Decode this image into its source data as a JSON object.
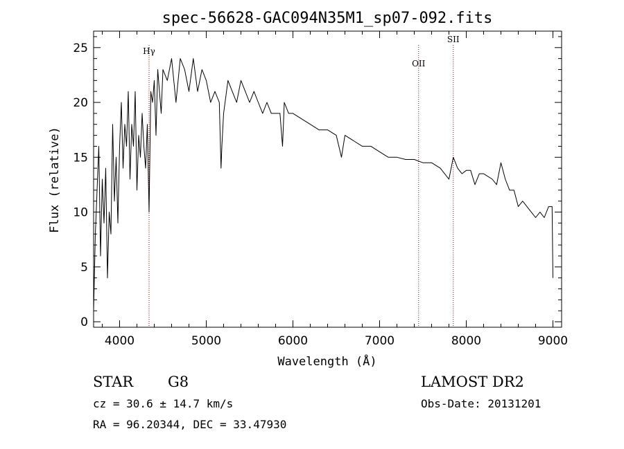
{
  "chart_data": {
    "type": "line",
    "title": "spec-56628-GAC094N35M1_sp07-092.fits",
    "xlabel": "Wavelength (Å)",
    "ylabel": "Flux (relative)",
    "xlim": [
      3700,
      9100
    ],
    "ylim": [
      -0.5,
      26.5
    ],
    "xticks": [
      4000,
      5000,
      6000,
      7000,
      8000,
      9000
    ],
    "yticks": [
      0,
      5,
      10,
      15,
      20,
      25
    ],
    "grid": false,
    "legend": "none",
    "line_color": "#000000",
    "marker_color": "#8b0000",
    "series": [
      {
        "x": [
          3700,
          3720,
          3740,
          3760,
          3780,
          3800,
          3820,
          3840,
          3860,
          3880,
          3900,
          3920,
          3940,
          3960,
          3980,
          4000,
          4020,
          4040,
          4060,
          4080,
          4100,
          4120,
          4140,
          4160,
          4180,
          4200,
          4220,
          4240,
          4260,
          4280,
          4300,
          4320,
          4340,
          4360,
          4380,
          4400,
          4420,
          4440,
          4460,
          4480,
          4500,
          4550,
          4600,
          4650,
          4700,
          4750,
          4800,
          4850,
          4900,
          4950,
          5000,
          5050,
          5100,
          5150,
          5170,
          5180,
          5200,
          5250,
          5300,
          5350,
          5400,
          5450,
          5500,
          5550,
          5600,
          5650,
          5700,
          5750,
          5800,
          5850,
          5880,
          5890,
          5900,
          5950,
          6000,
          6100,
          6200,
          6300,
          6400,
          6500,
          6560,
          6600,
          6700,
          6800,
          6900,
          7000,
          7100,
          7200,
          7300,
          7400,
          7500,
          7600,
          7700,
          7750,
          7800,
          7850,
          7900,
          7950,
          8000,
          8050,
          8100,
          8150,
          8200,
          8300,
          8350,
          8400,
          8450,
          8500,
          8550,
          8600,
          8650,
          8700,
          8750,
          8800,
          8850,
          8900,
          8950,
          8990,
          9000
        ],
        "y": [
          1,
          8,
          12,
          16,
          6,
          13,
          9,
          14,
          4,
          10,
          8,
          18,
          11,
          15,
          9,
          16,
          20,
          14,
          18,
          16,
          21,
          13,
          18,
          16,
          21,
          12,
          17,
          15,
          19,
          16,
          14,
          18,
          10,
          21,
          20,
          22,
          17,
          23,
          21,
          19,
          23,
          22,
          24,
          20,
          24,
          23,
          21,
          24,
          21,
          23,
          22,
          20,
          21,
          20,
          14,
          16,
          19,
          22,
          21,
          20,
          22,
          21,
          20,
          21,
          20,
          19,
          20,
          19,
          19,
          19,
          16,
          18,
          20,
          19,
          19,
          18.5,
          18,
          17.5,
          17.5,
          17,
          15,
          17,
          16.5,
          16,
          16,
          15.5,
          15,
          15,
          14.8,
          14.8,
          14.5,
          14.5,
          14,
          13.5,
          13,
          15,
          14,
          13.5,
          13.8,
          13.8,
          12.5,
          13.5,
          13.5,
          13,
          12.5,
          14.5,
          13,
          12,
          12,
          10.5,
          11,
          10.5,
          10,
          9.5,
          10,
          9.5,
          10.5,
          10.5,
          4
        ]
      }
    ],
    "lines": [
      {
        "name": "Hγ",
        "x": 4340
      },
      {
        "name": "OII",
        "x": 7450
      },
      {
        "name": "SII",
        "x": 7850
      }
    ]
  },
  "info": {
    "class": "STAR",
    "subclass": "G8",
    "survey": "LAMOST DR2",
    "cz": "cz = 30.6 ± 14.7 km/s",
    "obs_date": "Obs-Date: 20131201",
    "coords": "RA =  96.20344, DEC =  33.47930"
  }
}
